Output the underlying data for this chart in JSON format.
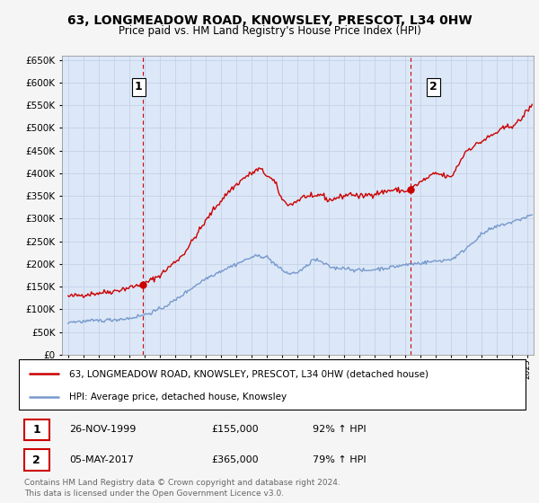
{
  "title": "63, LONGMEADOW ROAD, KNOWSLEY, PRESCOT, L34 0HW",
  "subtitle": "Price paid vs. HM Land Registry's House Price Index (HPI)",
  "ylim": [
    0,
    660000
  ],
  "yticks": [
    0,
    50000,
    100000,
    150000,
    200000,
    250000,
    300000,
    350000,
    400000,
    450000,
    500000,
    550000,
    600000,
    650000
  ],
  "xlim_start": 1994.6,
  "xlim_end": 2025.4,
  "legend_line1": "63, LONGMEADOW ROAD, KNOWSLEY, PRESCOT, L34 0HW (detached house)",
  "legend_line2": "HPI: Average price, detached house, Knowsley",
  "sale1_date": "26-NOV-1999",
  "sale1_price": "£155,000",
  "sale1_hpi": "92% ↑ HPI",
  "sale1_x": 1999.9,
  "sale1_y": 155000,
  "sale2_date": "05-MAY-2017",
  "sale2_price": "£365,000",
  "sale2_hpi": "79% ↑ HPI",
  "sale2_x": 2017.35,
  "sale2_y": 365000,
  "property_color": "#cc0000",
  "hpi_color": "#7799cc",
  "vline_color": "#cc0000",
  "grid_color": "#c8d4e8",
  "plot_bg": "#dce8f8",
  "footer": "Contains HM Land Registry data © Crown copyright and database right 2024.\nThis data is licensed under the Open Government Licence v3.0."
}
